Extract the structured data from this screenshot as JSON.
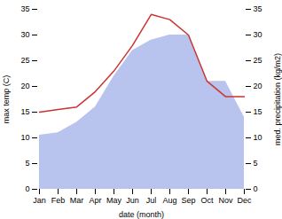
{
  "chart_data": {
    "type": "line",
    "categories": [
      "Jan",
      "Feb",
      "Mar",
      "Apr",
      "May",
      "Jun",
      "Jul",
      "Aug",
      "Sep",
      "Oct",
      "Nov",
      "Dec"
    ],
    "xlabel": "date (month)",
    "ylabel": "max temp (C)",
    "y2label": "med. precipitation (kg/m2)",
    "series": [
      {
        "type": "line",
        "color": "#cc3333",
        "values": [
          15,
          15.5,
          16,
          19,
          23,
          28,
          34,
          33,
          30,
          21,
          18,
          18
        ]
      },
      {
        "type": "area",
        "axis": "y2",
        "color": "#b8c4ee",
        "values": [
          10.5,
          11,
          13,
          16,
          22,
          27,
          29,
          30,
          30,
          21,
          21,
          14
        ]
      }
    ],
    "ylim": [
      0,
      35
    ],
    "yticks": [
      0,
      5,
      10,
      15,
      20,
      25,
      30,
      35
    ],
    "y2lim": [
      0,
      35
    ],
    "y2ticks": [
      0,
      5,
      10,
      15,
      20,
      25,
      30,
      35
    ]
  }
}
